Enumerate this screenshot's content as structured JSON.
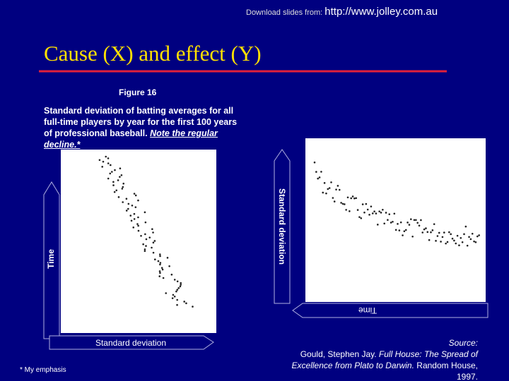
{
  "header": {
    "prefix": "Download slides from:",
    "url": "http://www.jolley.com.au"
  },
  "title": "Cause (X) and effect (Y)",
  "figure": {
    "label": "Figure 16",
    "caption": "Standard deviation of batting averages for all full-time players by year for the first 100 years of professional baseball.",
    "emphasis": "Note the regular decline.*"
  },
  "left_figure": {
    "y_arrow": "Time",
    "x_arrow": "Standard deviation"
  },
  "right_figure": {
    "y_arrow": "Standard deviation",
    "x_arrow": "Time"
  },
  "footnote": "* My emphasis",
  "source": {
    "label": "Source:",
    "author": "Gould, Stephen Jay.",
    "book": "Full House: The Spread of Excellence from Plato to Darwin.",
    "publisher": "Random House, 1997."
  }
}
